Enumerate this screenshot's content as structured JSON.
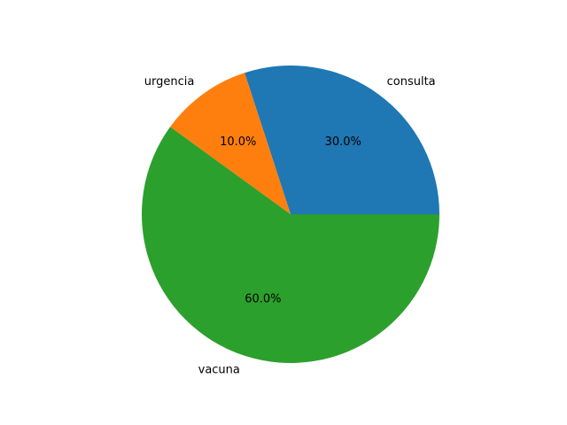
{
  "chart_data": {
    "type": "pie",
    "title": "",
    "slices": [
      {
        "label": "consulta",
        "value": 30.0,
        "pct_text": "30.0%",
        "color": "#1f77b4"
      },
      {
        "label": "urgencia",
        "value": 10.0,
        "pct_text": "10.0%",
        "color": "#ff7f0e"
      },
      {
        "label": "vacuna",
        "value": 60.0,
        "pct_text": "60.0%",
        "color": "#2ca02c"
      }
    ],
    "start_angle_deg": 0,
    "direction": "counterclockwise",
    "legend": "none"
  }
}
